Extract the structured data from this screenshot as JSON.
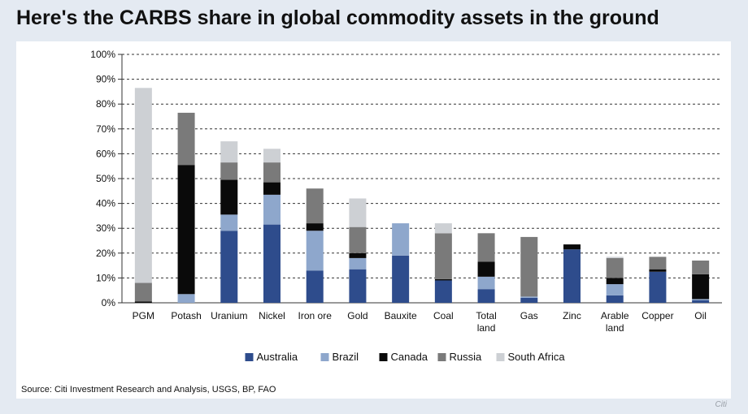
{
  "title": "Here's the CARBS share in global commodity assets in the ground",
  "source": "Source: Citi Investment Research and Analysis, USGS, BP, FAO",
  "credit": "Citi",
  "chart_data": {
    "type": "bar",
    "stacked": true,
    "categories": [
      [
        "PGM"
      ],
      [
        "Potash"
      ],
      [
        "Uranium"
      ],
      [
        "Nickel"
      ],
      [
        "Iron ore"
      ],
      [
        "Gold"
      ],
      [
        "Bauxite"
      ],
      [
        "Coal"
      ],
      [
        "Total",
        "land"
      ],
      [
        "Gas"
      ],
      [
        "Zinc"
      ],
      [
        "Arable",
        "land"
      ],
      [
        "Copper"
      ],
      [
        "Oil"
      ]
    ],
    "series": [
      {
        "name": "Australia",
        "color": "#2e4c8c",
        "values": [
          0,
          0,
          29,
          31.5,
          13,
          13.5,
          19,
          9,
          5.5,
          2,
          21.5,
          3,
          12.5,
          1
        ]
      },
      {
        "name": "Brazil",
        "color": "#8ea7cc",
        "values": [
          0,
          3.5,
          6.5,
          12,
          16,
          4.5,
          13,
          0,
          5,
          0.5,
          0,
          4.5,
          0,
          0.5
        ]
      },
      {
        "name": "Canada",
        "color": "#0a0a0a",
        "values": [
          0.5,
          52,
          14,
          5,
          3,
          2,
          0,
          0.5,
          6,
          0,
          2,
          2.5,
          1,
          10
        ]
      },
      {
        "name": "Russia",
        "color": "#7a7a7a",
        "values": [
          7.5,
          21,
          7,
          8,
          14,
          10.5,
          0,
          18.5,
          11.5,
          24,
          0,
          8,
          5,
          5.5
        ]
      },
      {
        "name": "South Africa",
        "color": "#cdd0d4",
        "values": [
          78.5,
          0,
          8.5,
          5.5,
          0,
          11.5,
          0,
          4,
          0,
          0,
          0,
          0.5,
          0,
          0
        ]
      }
    ],
    "yticks": [
      "0%",
      "10%",
      "20%",
      "30%",
      "40%",
      "50%",
      "60%",
      "70%",
      "80%",
      "90%",
      "100%"
    ],
    "ylim": [
      0,
      100
    ],
    "grid": true,
    "legend_position": "bottom",
    "title": "Here's the CARBS share in global commodity assets in the ground",
    "xlabel": "",
    "ylabel": ""
  }
}
